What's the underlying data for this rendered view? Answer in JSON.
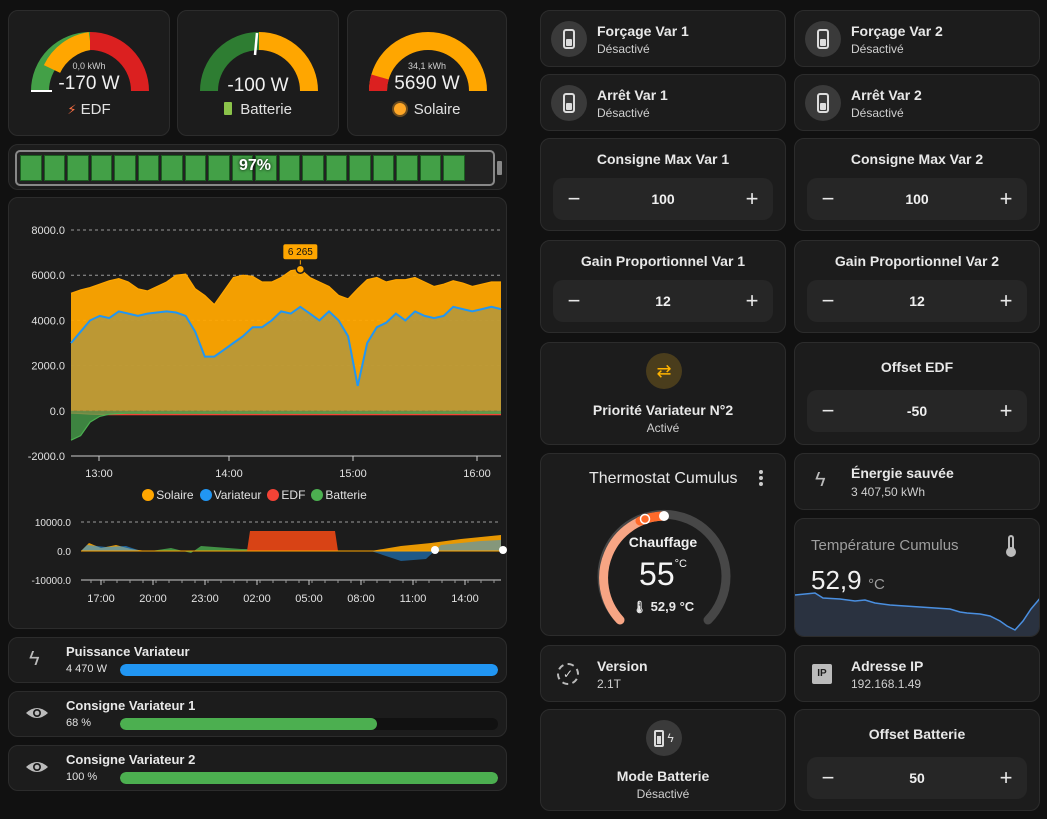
{
  "gauges": [
    {
      "sub": "0,0 kWh",
      "value": "-170 W",
      "name": "EDF"
    },
    {
      "sub": "",
      "value": "-100 W",
      "name": "Batterie"
    },
    {
      "sub": "34,1 kWh",
      "value": "5690 W",
      "name": "Solaire"
    }
  ],
  "battery_bar": {
    "percent_label": "97%",
    "level": 0.97
  },
  "chart_data": [
    {
      "type": "area",
      "x_ticks": [
        "13:00",
        "14:00",
        "15:00",
        "16:00"
      ],
      "y_ticks": [
        "8000.0",
        "6000.0",
        "4000.0",
        "2000.0",
        "0.0",
        "-2000.0"
      ],
      "ylim": [
        -2000,
        8000
      ],
      "annotation": "6 265",
      "legend": [
        "Solaire",
        "Variateur",
        "EDF",
        "Batterie"
      ],
      "legend_colors": [
        "#ffa600",
        "#2196f3",
        "#f44336",
        "#4caf50"
      ],
      "series": [
        {
          "name": "Solaire",
          "values": [
            5200,
            5350,
            5450,
            5600,
            5750,
            5850,
            5700,
            5400,
            5300,
            5500,
            5700,
            6000,
            6050,
            5400,
            5100,
            4700,
            5300,
            5900,
            6000,
            5950,
            5700,
            5700,
            5900,
            6200,
            6265,
            5900,
            5700,
            5500,
            5100,
            4950,
            5400,
            5800,
            5900,
            5700,
            5800,
            5800,
            5900,
            5700,
            5500,
            5600,
            5750,
            5650,
            5500,
            5600,
            5700,
            5700
          ]
        },
        {
          "name": "Variateur",
          "values": [
            3000,
            3500,
            4000,
            4200,
            4100,
            4400,
            4300,
            4200,
            4300,
            4350,
            4400,
            4350,
            4200,
            3500,
            2400,
            2400,
            2700,
            3000,
            3300,
            3700,
            3700,
            4000,
            4400,
            4300,
            4600,
            4300,
            4000,
            4400,
            4000,
            3300,
            1100,
            3000,
            3700,
            3900,
            4300,
            4000,
            4400,
            4200,
            4100,
            4200,
            4600,
            4500,
            4400,
            4500,
            4600,
            4500
          ]
        },
        {
          "name": "EDF",
          "values": [
            -100,
            -120,
            -150,
            -160,
            -170,
            -170,
            -170,
            -170,
            -170,
            -170,
            -170,
            -170,
            -170,
            -170,
            -170,
            -170,
            -170,
            -170,
            -170,
            -170,
            -170,
            -170,
            -170,
            -170,
            -170,
            -170,
            -170,
            -170,
            -170,
            -170,
            -170,
            -170,
            -170,
            -170,
            -170,
            -170,
            -170,
            -170,
            -170,
            -170,
            -170,
            -170,
            -170,
            -170,
            -170,
            -170
          ]
        },
        {
          "name": "Batterie",
          "values": [
            -1300,
            -1100,
            -500,
            -250,
            -150,
            -120,
            -100,
            -100,
            -100,
            -100,
            -100,
            -100,
            -100,
            -100,
            -100,
            -100,
            -100,
            -100,
            -100,
            -100,
            -100,
            -100,
            -100,
            -100,
            -100,
            -100,
            -100,
            -100,
            -100,
            -100,
            -100,
            -100,
            -100,
            -100,
            -100,
            -100,
            -100,
            -100,
            -100,
            -100,
            -100,
            -100,
            -100,
            -100,
            -100,
            -100
          ]
        }
      ]
    },
    {
      "type": "area",
      "x_ticks": [
        "17:00",
        "20:00",
        "23:00",
        "02:00",
        "05:00",
        "08:00",
        "11:00",
        "14:00"
      ],
      "y_ticks": [
        "10000.0",
        "0.0",
        "-10000.0"
      ],
      "ylim": [
        -10000,
        10000
      ]
    }
  ],
  "power_rows": [
    {
      "name": "Puissance Variateur",
      "value": "4 470 W",
      "level": 1.0,
      "color": "#2196f3",
      "icon": "flash-icon"
    },
    {
      "name": "Consigne Variateur 1",
      "value": "68 %",
      "level": 0.68,
      "color": "#4caf50",
      "icon": "eye-icon"
    },
    {
      "name": "Consigne Variateur 2",
      "value": "100 %",
      "level": 1.0,
      "color": "#4caf50",
      "icon": "eye-icon"
    }
  ],
  "tiles": {
    "forcage1": {
      "title": "Forçage Var 1",
      "state": "Désactivé"
    },
    "forcage2": {
      "title": "Forçage Var 2",
      "state": "Désactivé"
    },
    "arret1": {
      "title": "Arrêt Var 1",
      "state": "Désactivé"
    },
    "arret2": {
      "title": "Arrêt Var 2",
      "state": "Désactivé"
    }
  },
  "numbers": {
    "consigne_max1": {
      "title": "Consigne Max Var 1",
      "value": "100"
    },
    "consigne_max2": {
      "title": "Consigne Max Var 2",
      "value": "100"
    },
    "gain1": {
      "title": "Gain Proportionnel Var 1",
      "value": "12"
    },
    "gain2": {
      "title": "Gain Proportionnel Var 2",
      "value": "12"
    },
    "offset_edf": {
      "title": "Offset EDF",
      "value": "-50"
    },
    "offset_batt": {
      "title": "Offset Batterie",
      "value": "50"
    }
  },
  "buttons": {
    "minus": "−",
    "plus": "+"
  },
  "priorite": {
    "title": "Priorité Variateur N°2",
    "state": "Activé"
  },
  "thermostat": {
    "title": "Thermostat Cumulus",
    "mode": "Chauffage",
    "target": "55",
    "unit": "°C",
    "current": "52,9 °C"
  },
  "energie": {
    "title": "Énergie sauvée",
    "value": "3 407,50 kWh"
  },
  "temperature": {
    "title": "Température Cumulus",
    "value": "52,9",
    "unit": "°C"
  },
  "version": {
    "title": "Version",
    "value": "2.1T"
  },
  "ip": {
    "title": "Adresse IP",
    "value": "192.168.1.49",
    "badge": "IP"
  },
  "mode_batterie": {
    "title": "Mode Batterie",
    "state": "Désactivé"
  }
}
